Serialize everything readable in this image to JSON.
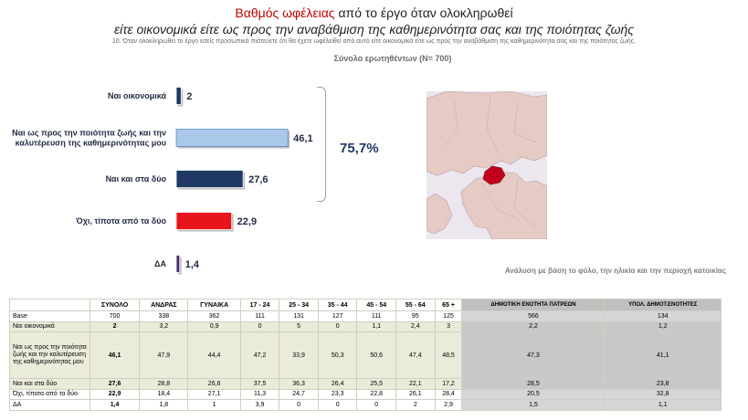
{
  "header": {
    "title_red": "Βαθμός ωφέλειας",
    "title_rest": " από το έργο όταν ολοκληρωθεί",
    "subtitle": "είτε οικονομικά είτε ως προς την αναβάθμιση της καθημερινότητα σας και της ποιότητας ζωής",
    "question": "10. Όταν ολοκληρωθεί το έργο εσείς προσωπικά πιστεύετε ότι θα έχετε ωφέλειθεί από αυτό είτε οικονομικά είτε ως προς την αναβάθμιση της καθημερινότητα σας και της ποιότητας ζωής.",
    "sample": "Σύνολο ερωτηθέντων (N= 700)"
  },
  "chart_data": {
    "type": "bar",
    "orientation": "horizontal",
    "categories": [
      "Ναι οικονομικά",
      "Ναι ως προς την ποιότητα ζωής και την καλυτέρευση της καθημερινότητας μου",
      "Ναι και στα δύο",
      "Όχι, τίποτα από τα δύο",
      "ΔΑ"
    ],
    "values": [
      2,
      46.1,
      27.6,
      22.9,
      1.4
    ],
    "value_labels": [
      "2",
      "46,1",
      "27,6",
      "22,9",
      "1,4"
    ],
    "colors": [
      "#1f3864",
      "#a9c8ea",
      "#1f3864",
      "#e8141c",
      "#4b2a73"
    ],
    "xlim": [
      0,
      50
    ],
    "grid": false,
    "bracket_total": "75,7%"
  },
  "map": {
    "highlight_color": "#c0001a",
    "base_color": "#e6cac4"
  },
  "analysis_note": "Ανάλυση με βάση το φύλο, την ηλικία και την  περιοχή κατοικίας",
  "table": {
    "headers": [
      "",
      "ΣΥΝΟΛΟ",
      "ΑΝΔΡΑΣ",
      "ΓΥΝΑΙΚΑ",
      "17 - 24",
      "25 - 34",
      "35 - 44",
      "45 - 54",
      "55 - 64",
      "65 +",
      "ΔΗΜΟΤΙΚΗ ΕΝΟΤΗΤΑ ΠΑΤΡΕΩΝ",
      "ΥΠΟΛ. ΔΗΜΟΤ.ΕΝΟΤΗΤΕΣ"
    ],
    "rows": [
      {
        "label": "Base",
        "cells": [
          "700",
          "338",
          "362",
          "111",
          "131",
          "127",
          "111",
          "95",
          "125",
          "566",
          "134"
        ]
      },
      {
        "label": "Ναι οικονομικά",
        "cells": [
          "2",
          "3,2",
          "0,9",
          "0",
          "5",
          "0",
          "1,1",
          "2,4",
          "3",
          "2,2",
          "1,2"
        ]
      },
      {
        "label": "Ναι ως προς την ποιότητα ζωής και την καλυτέρευση της καθημερινότητας μου",
        "cells": [
          "46,1",
          "47,9",
          "44,4",
          "47,2",
          "33,9",
          "50,3",
          "50,6",
          "47,4",
          "48,5",
          "47,3",
          "41,1"
        ]
      },
      {
        "label": "Ναι και στα δύο",
        "cells": [
          "27,6",
          "28,8",
          "26,6",
          "37,5",
          "36,3",
          "26,4",
          "25,5",
          "22,1",
          "17,2",
          "28,5",
          "23,8"
        ]
      },
      {
        "label": "Όχι, τίποτα από τα δύο",
        "cells": [
          "22,9",
          "18,4",
          "27,1",
          "11,3",
          "24,7",
          "23,3",
          "22,8",
          "26,1",
          "28,4",
          "20,5",
          "32,8"
        ]
      },
      {
        "label": "ΔΑ",
        "cells": [
          "1,4",
          "1,8",
          "1",
          "3,9",
          "0",
          "0",
          "0",
          "2",
          "2,9",
          "1,5",
          "1,1"
        ]
      }
    ]
  }
}
